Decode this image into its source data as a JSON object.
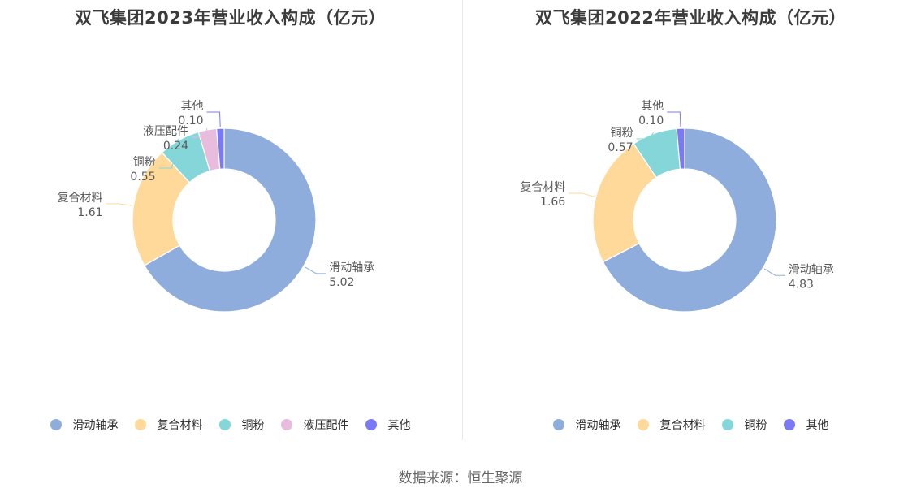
{
  "chart_data": [
    {
      "type": "pie",
      "title": "双飞集团2023年营业收入构成（亿元）",
      "series": [
        {
          "name": "滑动轴承",
          "value": 5.02,
          "label": "5.02",
          "color": "#8faddc"
        },
        {
          "name": "复合材料",
          "value": 1.61,
          "label": "1.61",
          "color": "#ffd99a"
        },
        {
          "name": "铜粉",
          "value": 0.55,
          "label": "0.55",
          "color": "#85d6d8"
        },
        {
          "name": "液压配件",
          "value": 0.24,
          "label": "0.24",
          "color": "#e7bcdc"
        },
        {
          "name": "其他",
          "value": 0.1,
          "label": "0.10",
          "color": "#7a7af7"
        }
      ]
    },
    {
      "type": "pie",
      "title": "双飞集团2022年营业收入构成（亿元）",
      "series": [
        {
          "name": "滑动轴承",
          "value": 4.83,
          "label": "4.83",
          "color": "#8faddc"
        },
        {
          "name": "复合材料",
          "value": 1.66,
          "label": "1.66",
          "color": "#ffd99a"
        },
        {
          "name": "铜粉",
          "value": 0.57,
          "label": "0.57",
          "color": "#85d6d8"
        },
        {
          "name": "其他",
          "value": 0.1,
          "label": "0.10",
          "color": "#7a7af7"
        }
      ]
    }
  ],
  "source": "数据来源：恒生聚源"
}
